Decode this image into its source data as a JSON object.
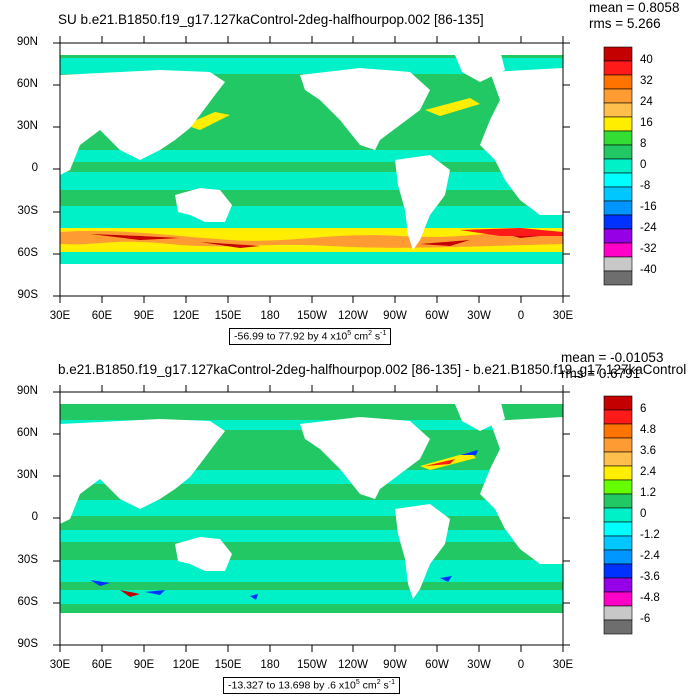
{
  "panels": [
    {
      "title": "SU b.e21.B1850.f19_g17.127kaControl-2deg-halfhourpop.002 [86-135]",
      "mean": "mean = 0.8058",
      "rms": "rms = 5.266",
      "range": "-56.99 to 77.92 by 4 x10",
      "range_exp": "5",
      "range_unit_a": " cm",
      "range_unit_b": "2",
      "range_unit_c": " s",
      "range_unit_d": "-1",
      "colorbar_labels": [
        "40",
        "32",
        "24",
        "16",
        "8",
        "0",
        "-8",
        "-16",
        "-24",
        "-32",
        "-40"
      ]
    },
    {
      "title": "b.e21.B1850.f19_g17.127kaControl-2deg-halfhourpop.002 [86-135] - b.e21.B1850.f19_g17.127kaControl",
      "mean": "mean = -0.01053",
      "rms": "rms = 0.6791",
      "range": "-13.327 to 13.698 by .6 x10",
      "range_exp": "5",
      "range_unit_a": " cm",
      "range_unit_b": "2",
      "range_unit_c": " s",
      "range_unit_d": "-1",
      "colorbar_labels": [
        "6",
        "4.8",
        "3.6",
        "2.4",
        "1.2",
        "0",
        "-1.2",
        "-2.4",
        "-3.6",
        "-4.8",
        "-6"
      ]
    }
  ],
  "lat_labels": [
    "90N",
    "60N",
    "30N",
    "0",
    "30S",
    "60S",
    "90S"
  ],
  "lon_labels": [
    "30E",
    "60E",
    "90E",
    "120E",
    "150E",
    "180",
    "150W",
    "120W",
    "90W",
    "60W",
    "30W",
    "0",
    "30E"
  ],
  "colors": {
    "cb1": [
      "#c40000",
      "#ff1a1a",
      "#ff7300",
      "#ff9b33",
      "#ffbf4d",
      "#ffee00",
      "#33dd33",
      "#22c864",
      "#00f0c8",
      "#00ffff",
      "#00c8ff",
      "#0096ff",
      "#0032ff",
      "#9600e6",
      "#ff00c8",
      "#c8c8c8",
      "#6e6e6e"
    ],
    "cb2": [
      "#c40000",
      "#ff1a1a",
      "#ff7300",
      "#ff9b33",
      "#ffbf4d",
      "#ffee00",
      "#66ff00",
      "#22c864",
      "#00f0c8",
      "#00ffff",
      "#00c8ff",
      "#0096ff",
      "#0032ff",
      "#9600e6",
      "#ff00c8",
      "#c8c8c8",
      "#6e6e6e"
    ],
    "ocean_main": "#22c864",
    "ocean_alt": "#00f0c8"
  }
}
